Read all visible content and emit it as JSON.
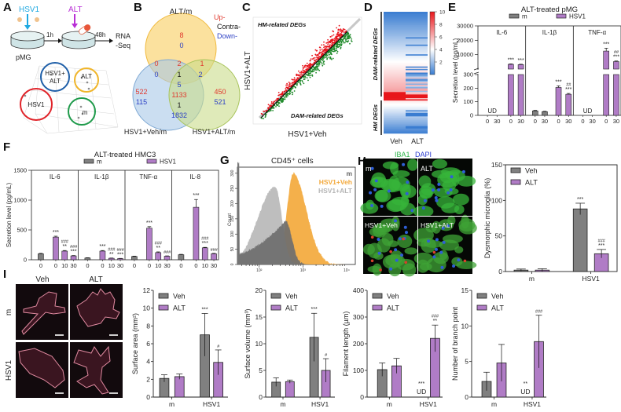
{
  "panel_a": {
    "letter": "A",
    "virus": "HSV1",
    "drug": "ALT",
    "t1": "1h",
    "t2": "48h",
    "rna1": "RNA",
    "rna2": "-Seq",
    "cells": "pMG",
    "pca": {
      "g1a": "HSV1+",
      "g1b": "ALT",
      "g2": "ALT",
      "g3": "HSV1",
      "g4": "m"
    },
    "colors": {
      "virus": "#1fa9e1",
      "drug": "#b92fd6",
      "hsv1_alt": "#1f5fa8",
      "alt": "#f0b52a",
      "hsv1": "#e0242a",
      "m": "#1e9a4a"
    }
  },
  "panel_b": {
    "letter": "B",
    "set_top": "ALT/m",
    "set_left": "HSV1+Veh/m",
    "set_right": "HSV1+ALT/m",
    "legend": {
      "up": "Up-",
      "contra": "Contra-",
      "down": "Down-"
    },
    "regions": {
      "top_only": {
        "up": "8",
        "down": "0"
      },
      "top_left": {
        "up": "0",
        "down": "0"
      },
      "center": {
        "up": "2",
        "contra": "1",
        "down": "5"
      },
      "top_right": {
        "up": "1",
        "down": "2"
      },
      "left_only": {
        "up": "522",
        "down": "115"
      },
      "left_right": {
        "up": "1133",
        "contra": "1",
        "down": "1832"
      },
      "right_only": {
        "up": "450",
        "down": "521"
      }
    },
    "colors": {
      "up": "#e0382d",
      "contra": "#111111",
      "down": "#2b3fc4"
    }
  },
  "panels": {
    "C": "C",
    "D": "D",
    "E": "E",
    "F": "F",
    "G": "G",
    "H": "H",
    "I": "I"
  },
  "panel_h_images": {
    "title_a": "IBA1",
    "title_b": "DAPI",
    "labels": [
      "m",
      "ALT",
      "HSV1+Veh",
      "HSV1+ALT"
    ]
  },
  "panel_i_images": {
    "cols": [
      "Veh",
      "ALT"
    ],
    "rows": [
      "m",
      "HSV1"
    ]
  },
  "chart_data": [
    {
      "type": "scatter",
      "xlabel": "HSV1+Veh",
      "ylabel": "HSV1+ALT",
      "annotations": [
        "HM-related DEGs",
        "DAM-related DEGs"
      ],
      "series_colors": {
        "above_diagonal": "#e8141c",
        "below_diagonal": "#1f8a2a"
      }
    },
    {
      "type": "heatmap",
      "columns": [
        "Veh",
        "ALT"
      ],
      "row_groups": [
        "DAM-related DEGs",
        "HM DEGs"
      ],
      "colorbar": {
        "ticks": [
          2,
          4,
          6,
          8,
          10
        ],
        "range": [
          0,
          10
        ],
        "low": "#3a7dd1",
        "mid": "#ffffff",
        "high": "#e8161b"
      }
    },
    {
      "type": "bar",
      "title": "ALT-treated pMG",
      "ylabel": "Secretion level (pg/mL)",
      "legend": [
        "m",
        "HSV1"
      ],
      "colors": {
        "m": "#808080",
        "HSV1": "#b07cc6"
      },
      "yticks_lower": [
        0,
        100,
        200,
        300
      ],
      "yticks_upper": [
        10000,
        20000,
        30000
      ],
      "ylim": [
        0,
        30000
      ],
      "axis_break": 300,
      "facets": [
        {
          "name": "IL-6",
          "bars": [
            {
              "x": "0",
              "group": "m",
              "value": null,
              "ud": true
            },
            {
              "x": "30",
              "group": "m",
              "value": null,
              "ud": true
            },
            {
              "x": "0",
              "group": "HSV1",
              "value": 3300,
              "sd": 300,
              "annot": [
                "***"
              ]
            },
            {
              "x": "30",
              "group": "HSV1",
              "value": 3100,
              "sd": 250,
              "annot": [
                "***"
              ]
            }
          ]
        },
        {
          "name": "IL-1β",
          "bars": [
            {
              "x": "0",
              "group": "m",
              "value": 33,
              "sd": 4
            },
            {
              "x": "30",
              "group": "m",
              "value": 27,
              "sd": 3
            },
            {
              "x": "0",
              "group": "HSV1",
              "value": 205,
              "sd": 12,
              "annot": [
                "***"
              ]
            },
            {
              "x": "30",
              "group": "HSV1",
              "value": 155,
              "sd": 6,
              "annot": [
                "##",
                "***"
              ]
            }
          ]
        },
        {
          "name": "TNF-α",
          "bars": [
            {
              "x": "0",
              "group": "m",
              "value": null,
              "ud": true
            },
            {
              "x": "30",
              "group": "m",
              "value": null,
              "ud": true
            },
            {
              "x": "0",
              "group": "HSV1",
              "value": 12500,
              "sd": 2000,
              "annot": [
                "***"
              ]
            },
            {
              "x": "30",
              "group": "HSV1",
              "value": 5200,
              "sd": 400,
              "annot": [
                "##",
                "***"
              ]
            }
          ]
        }
      ],
      "ud_label": "UD"
    },
    {
      "type": "bar",
      "title": "ALT-treated HMC3",
      "ylabel": "Secretion level (pg/mL)",
      "legend": [
        "m",
        "HSV1"
      ],
      "colors": {
        "m": "#808080",
        "HSV1": "#b07cc6"
      },
      "yticks": [
        0,
        500,
        1000,
        1500
      ],
      "ylim": [
        0,
        1500
      ],
      "facets": [
        {
          "name": "IL-6",
          "bars": [
            {
              "x": "0",
              "group": "m",
              "value": 100,
              "sd": 8
            },
            {
              "x": "0",
              "group": "HSV1",
              "value": 380,
              "sd": 15,
              "annot": [
                "***"
              ]
            },
            {
              "x": "10",
              "group": "HSV1",
              "value": 145,
              "sd": 10,
              "annot": [
                "###",
                "**"
              ]
            },
            {
              "x": "30",
              "group": "HSV1",
              "value": 65,
              "sd": 6,
              "annot": [
                "###",
                "***"
              ]
            }
          ]
        },
        {
          "name": "IL-1β",
          "bars": [
            {
              "x": "0",
              "group": "m",
              "value": 30,
              "sd": 4
            },
            {
              "x": "0",
              "group": "HSV1",
              "value": 145,
              "sd": 10,
              "annot": [
                "***"
              ]
            },
            {
              "x": "10",
              "group": "HSV1",
              "value": 25,
              "sd": 4,
              "annot": [
                "###",
                "**"
              ]
            },
            {
              "x": "30",
              "group": "HSV1",
              "value": 20,
              "sd": 3,
              "annot": [
                "###",
                "***"
              ]
            }
          ]
        },
        {
          "name": "TNF-α",
          "bars": [
            {
              "x": "0",
              "group": "m",
              "value": 55,
              "sd": 6
            },
            {
              "x": "0",
              "group": "HSV1",
              "value": 530,
              "sd": 25,
              "annot": [
                "***"
              ]
            },
            {
              "x": "10",
              "group": "HSV1",
              "value": 120,
              "sd": 12,
              "annot": [
                "###",
                "**"
              ]
            },
            {
              "x": "30",
              "group": "HSV1",
              "value": 60,
              "sd": 5,
              "annot": [
                "###"
              ]
            }
          ]
        },
        {
          "name": "IL-8",
          "bars": [
            {
              "x": "0",
              "group": "m",
              "value": 85,
              "sd": 6
            },
            {
              "x": "0",
              "group": "HSV1",
              "value": 880,
              "sd": 130,
              "annot": [
                "***"
              ]
            },
            {
              "x": "10",
              "group": "HSV1",
              "value": 200,
              "sd": 8,
              "annot": [
                "###",
                "***"
              ]
            },
            {
              "x": "30",
              "group": "HSV1",
              "value": 100,
              "sd": 8,
              "annot": [
                "###"
              ]
            }
          ]
        }
      ]
    },
    {
      "type": "area",
      "title": "CD45⁺ cells",
      "ylabel": "Count",
      "xscale": "log",
      "xticks": [
        "10²",
        "10³",
        "10⁴"
      ],
      "yticks": [
        0,
        50,
        100,
        150,
        200,
        250,
        300
      ],
      "series": [
        {
          "name": "m",
          "color": "#6e6e6e",
          "peak_x": 400,
          "peak_count": 145
        },
        {
          "name": "HSV1+Veh",
          "color": "#f3a93c",
          "peak_x": 600,
          "peak_count": 300
        },
        {
          "name": "HSV1+ALT",
          "color": "#b8b8b8",
          "peak_x": 230,
          "peak_count": 255
        }
      ],
      "legend_colors": [
        "#666666",
        "#f3a93c",
        "#b5b5b5"
      ]
    },
    {
      "type": "bar",
      "ylabel": "Dysmorphic microglia (%)",
      "ylim": [
        0,
        150
      ],
      "yticks": [
        0,
        50,
        100,
        150
      ],
      "groups": [
        "m",
        "HSV1"
      ],
      "series": [
        {
          "name": "Veh",
          "color": "#808080"
        },
        {
          "name": "ALT",
          "color": "#b07cc6"
        }
      ],
      "bars": [
        {
          "group": "m",
          "series": "Veh",
          "value": 2,
          "sd": 1.5
        },
        {
          "group": "m",
          "series": "ALT",
          "value": 2,
          "sd": 2
        },
        {
          "group": "HSV1",
          "series": "Veh",
          "value": 88,
          "sd": 8,
          "annot": [
            "***"
          ]
        },
        {
          "group": "HSV1",
          "series": "ALT",
          "value": 25,
          "sd": 6,
          "annot": [
            "###",
            "***"
          ]
        }
      ]
    },
    {
      "type": "bar",
      "ylabel": "Surface area (mm²)",
      "ylim": [
        0,
        12
      ],
      "yticks": [
        0,
        2,
        4,
        6,
        8,
        10,
        12
      ],
      "groups": [
        "m",
        "HSV1"
      ],
      "series": [
        {
          "name": "Veh",
          "color": "#808080"
        },
        {
          "name": "ALT",
          "color": "#b07cc6"
        }
      ],
      "bars": [
        {
          "group": "m",
          "series": "Veh",
          "value": 2.1,
          "sd": 0.4
        },
        {
          "group": "m",
          "series": "ALT",
          "value": 2.3,
          "sd": 0.3
        },
        {
          "group": "HSV1",
          "series": "Veh",
          "value": 7.0,
          "sd": 2.4,
          "annot": [
            "***"
          ]
        },
        {
          "group": "HSV1",
          "series": "ALT",
          "value": 3.9,
          "sd": 1.4,
          "annot": [
            "#"
          ]
        }
      ]
    },
    {
      "type": "bar",
      "ylabel": "Surface volume (mm³)",
      "ylim": [
        0,
        20
      ],
      "yticks": [
        0,
        5,
        10,
        15,
        20
      ],
      "groups": [
        "m",
        "HSV1"
      ],
      "series": [
        {
          "name": "Veh",
          "color": "#808080"
        },
        {
          "name": "ALT",
          "color": "#b07cc6"
        }
      ],
      "bars": [
        {
          "group": "m",
          "series": "Veh",
          "value": 2.8,
          "sd": 0.8
        },
        {
          "group": "m",
          "series": "ALT",
          "value": 2.9,
          "sd": 0.3
        },
        {
          "group": "HSV1",
          "series": "Veh",
          "value": 11.2,
          "sd": 4.5,
          "annot": [
            "***"
          ]
        },
        {
          "group": "HSV1",
          "series": "ALT",
          "value": 5.0,
          "sd": 2.2,
          "annot": [
            "#"
          ]
        }
      ]
    },
    {
      "type": "bar",
      "ylabel": "Filament length (µm)",
      "ylim": [
        0,
        400
      ],
      "yticks": [
        0,
        100,
        200,
        300,
        400
      ],
      "groups": [
        "m",
        "HSV1"
      ],
      "series": [
        {
          "name": "Veh",
          "color": "#808080"
        },
        {
          "name": "ALT",
          "color": "#b07cc6"
        }
      ],
      "bars": [
        {
          "group": "m",
          "series": "Veh",
          "value": 103,
          "sd": 25
        },
        {
          "group": "m",
          "series": "ALT",
          "value": 117,
          "sd": 28
        },
        {
          "group": "HSV1",
          "series": "Veh",
          "value": null,
          "ud": true,
          "annot": [
            "***"
          ]
        },
        {
          "group": "HSV1",
          "series": "ALT",
          "value": 220,
          "sd": 50,
          "annot": [
            "###",
            "**"
          ]
        }
      ],
      "ud_label": "UD"
    },
    {
      "type": "bar",
      "ylabel": "Number of branch point",
      "ylim": [
        0,
        15
      ],
      "yticks": [
        0,
        5,
        10,
        15
      ],
      "groups": [
        "m",
        "HSV1"
      ],
      "series": [
        {
          "name": "Veh",
          "color": "#808080"
        },
        {
          "name": "ALT",
          "color": "#b07cc6"
        }
      ],
      "bars": [
        {
          "group": "m",
          "series": "Veh",
          "value": 2.2,
          "sd": 1.3
        },
        {
          "group": "m",
          "series": "ALT",
          "value": 4.8,
          "sd": 2.6
        },
        {
          "group": "HSV1",
          "series": "Veh",
          "value": null,
          "ud": true,
          "annot": [
            "**"
          ]
        },
        {
          "group": "HSV1",
          "series": "ALT",
          "value": 7.8,
          "sd": 3.7,
          "annot": [
            "###"
          ]
        }
      ],
      "ud_label": "UD"
    }
  ]
}
